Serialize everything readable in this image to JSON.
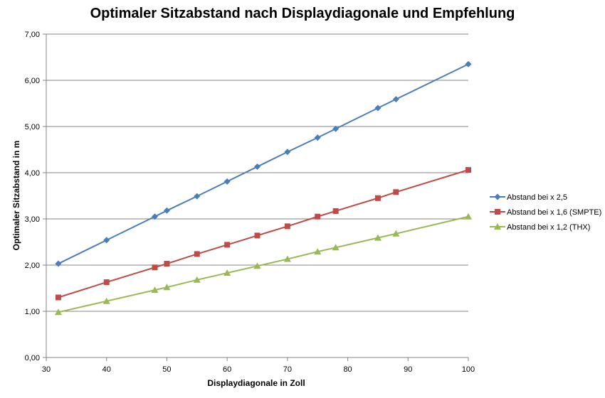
{
  "chart_data": {
    "type": "line",
    "title": "Optimaler Sitzabstand nach Displaydiagonale und Empfehlung",
    "xlabel": "Displaydiagonale in Zoll",
    "ylabel": "Optimaler Sitzabstand in m",
    "xlim": [
      30,
      100
    ],
    "ylim": [
      0,
      7
    ],
    "x_ticks": [
      30,
      40,
      50,
      60,
      70,
      80,
      90,
      100
    ],
    "y_ticks": [
      "0,00",
      "1,00",
      "2,00",
      "3,00",
      "4,00",
      "5,00",
      "6,00",
      "7,00"
    ],
    "grid": "horizontal",
    "legend_position": "right",
    "x": [
      32,
      40,
      48,
      50,
      55,
      60,
      65,
      70,
      75,
      78,
      85,
      88,
      100
    ],
    "series": [
      {
        "name": "Abstand bei x 2,5",
        "color": "#4a7ebb",
        "marker": "diamond",
        "values": [
          2.03,
          2.54,
          3.05,
          3.18,
          3.49,
          3.81,
          4.13,
          4.45,
          4.76,
          4.95,
          5.4,
          5.59,
          6.35
        ]
      },
      {
        "name": "Abstand bei x 1,6 (SMPTE)",
        "color": "#be4b48",
        "marker": "square",
        "values": [
          1.3,
          1.63,
          1.95,
          2.03,
          2.24,
          2.44,
          2.64,
          2.84,
          3.05,
          3.17,
          3.45,
          3.58,
          4.06
        ]
      },
      {
        "name": "Abstand bei x 1,2 (THX)",
        "color": "#98b954",
        "marker": "triangle",
        "values": [
          0.98,
          1.22,
          1.46,
          1.52,
          1.68,
          1.83,
          1.98,
          2.13,
          2.29,
          2.38,
          2.59,
          2.68,
          3.05
        ]
      }
    ]
  }
}
